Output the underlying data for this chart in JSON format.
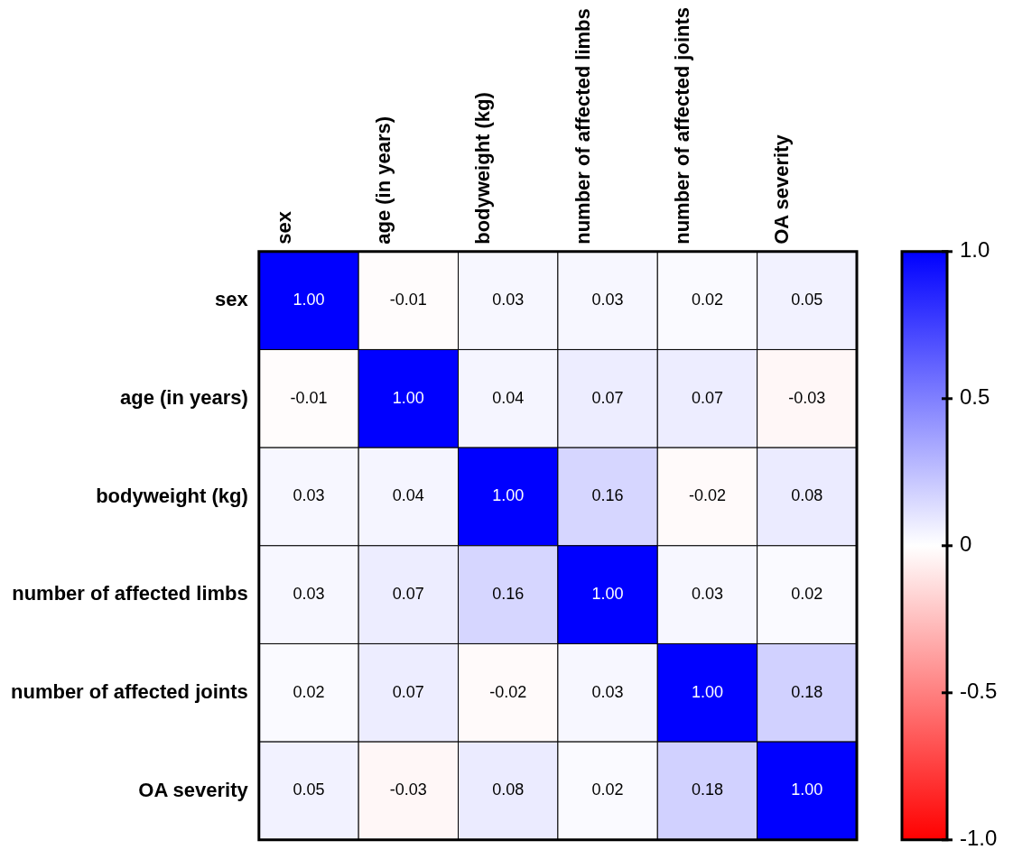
{
  "chart_data": {
    "type": "heatmap",
    "categories": [
      "sex",
      "age (in years)",
      "bodyweight (kg)",
      "number of affected limbs",
      "number of affected joints",
      "OA severity"
    ],
    "y_categories": [
      "sex",
      "age (in years)",
      "bodyweight (kg)",
      "number of affected limbs",
      "number of affected joints",
      "OA severity"
    ],
    "cells": [
      [
        1.0,
        -0.01,
        0.03,
        0.03,
        0.02,
        0.05
      ],
      [
        -0.01,
        1.0,
        0.04,
        0.07,
        0.07,
        -0.03
      ],
      [
        0.03,
        0.04,
        1.0,
        0.16,
        -0.02,
        0.08
      ],
      [
        0.03,
        0.07,
        0.16,
        1.0,
        0.03,
        0.02
      ],
      [
        0.02,
        0.07,
        -0.02,
        0.03,
        1.0,
        0.18
      ],
      [
        0.05,
        -0.03,
        0.08,
        0.02,
        0.18,
        1.0
      ]
    ],
    "cell_labels": [
      [
        "1.00",
        "-0.01",
        "0.03",
        "0.03",
        "0.02",
        "0.05"
      ],
      [
        "-0.01",
        "1.00",
        "0.04",
        "0.07",
        "0.07",
        "-0.03"
      ],
      [
        "0.03",
        "0.04",
        "1.00",
        "0.16",
        "-0.02",
        "0.08"
      ],
      [
        "0.03",
        "0.07",
        "0.16",
        "1.00",
        "0.03",
        "0.02"
      ],
      [
        "0.02",
        "0.07",
        "-0.02",
        "0.03",
        "1.00",
        "0.18"
      ],
      [
        "0.05",
        "-0.03",
        "0.08",
        "0.02",
        "0.18",
        "1.00"
      ]
    ],
    "clim": [
      -1,
      1
    ],
    "cticks": [
      {
        "value": 1,
        "label": "1.0"
      },
      0.5,
      0,
      -0.5,
      {
        "value": -1,
        "label": "-1.0"
      }
    ]
  }
}
